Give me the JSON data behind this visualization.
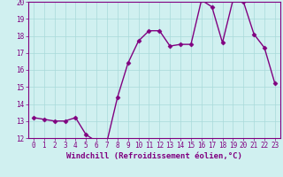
{
  "x": [
    0,
    1,
    2,
    3,
    4,
    5,
    6,
    7,
    8,
    9,
    10,
    11,
    12,
    13,
    14,
    15,
    16,
    17,
    18,
    19,
    20,
    21,
    22,
    23
  ],
  "y": [
    13.2,
    13.1,
    13.0,
    13.0,
    13.2,
    12.2,
    11.8,
    11.8,
    14.4,
    16.4,
    17.7,
    18.3,
    18.3,
    17.4,
    17.5,
    17.5,
    20.1,
    19.7,
    17.6,
    20.1,
    20.0,
    18.1,
    17.3,
    15.2
  ],
  "line_color": "#800080",
  "marker": "D",
  "marker_size": 2.5,
  "bg_color": "#d0f0f0",
  "grid_color": "#a8dada",
  "xlabel": "Windchill (Refroidissement éolien,°C)",
  "xlabel_fontsize": 6.5,
  "ylim": [
    12,
    20
  ],
  "xlim_min": -0.5,
  "xlim_max": 23.5,
  "yticks": [
    12,
    13,
    14,
    15,
    16,
    17,
    18,
    19,
    20
  ],
  "xticks": [
    0,
    1,
    2,
    3,
    4,
    5,
    6,
    7,
    8,
    9,
    10,
    11,
    12,
    13,
    14,
    15,
    16,
    17,
    18,
    19,
    20,
    21,
    22,
    23
  ],
  "tick_fontsize": 5.5,
  "line_width": 1.0
}
